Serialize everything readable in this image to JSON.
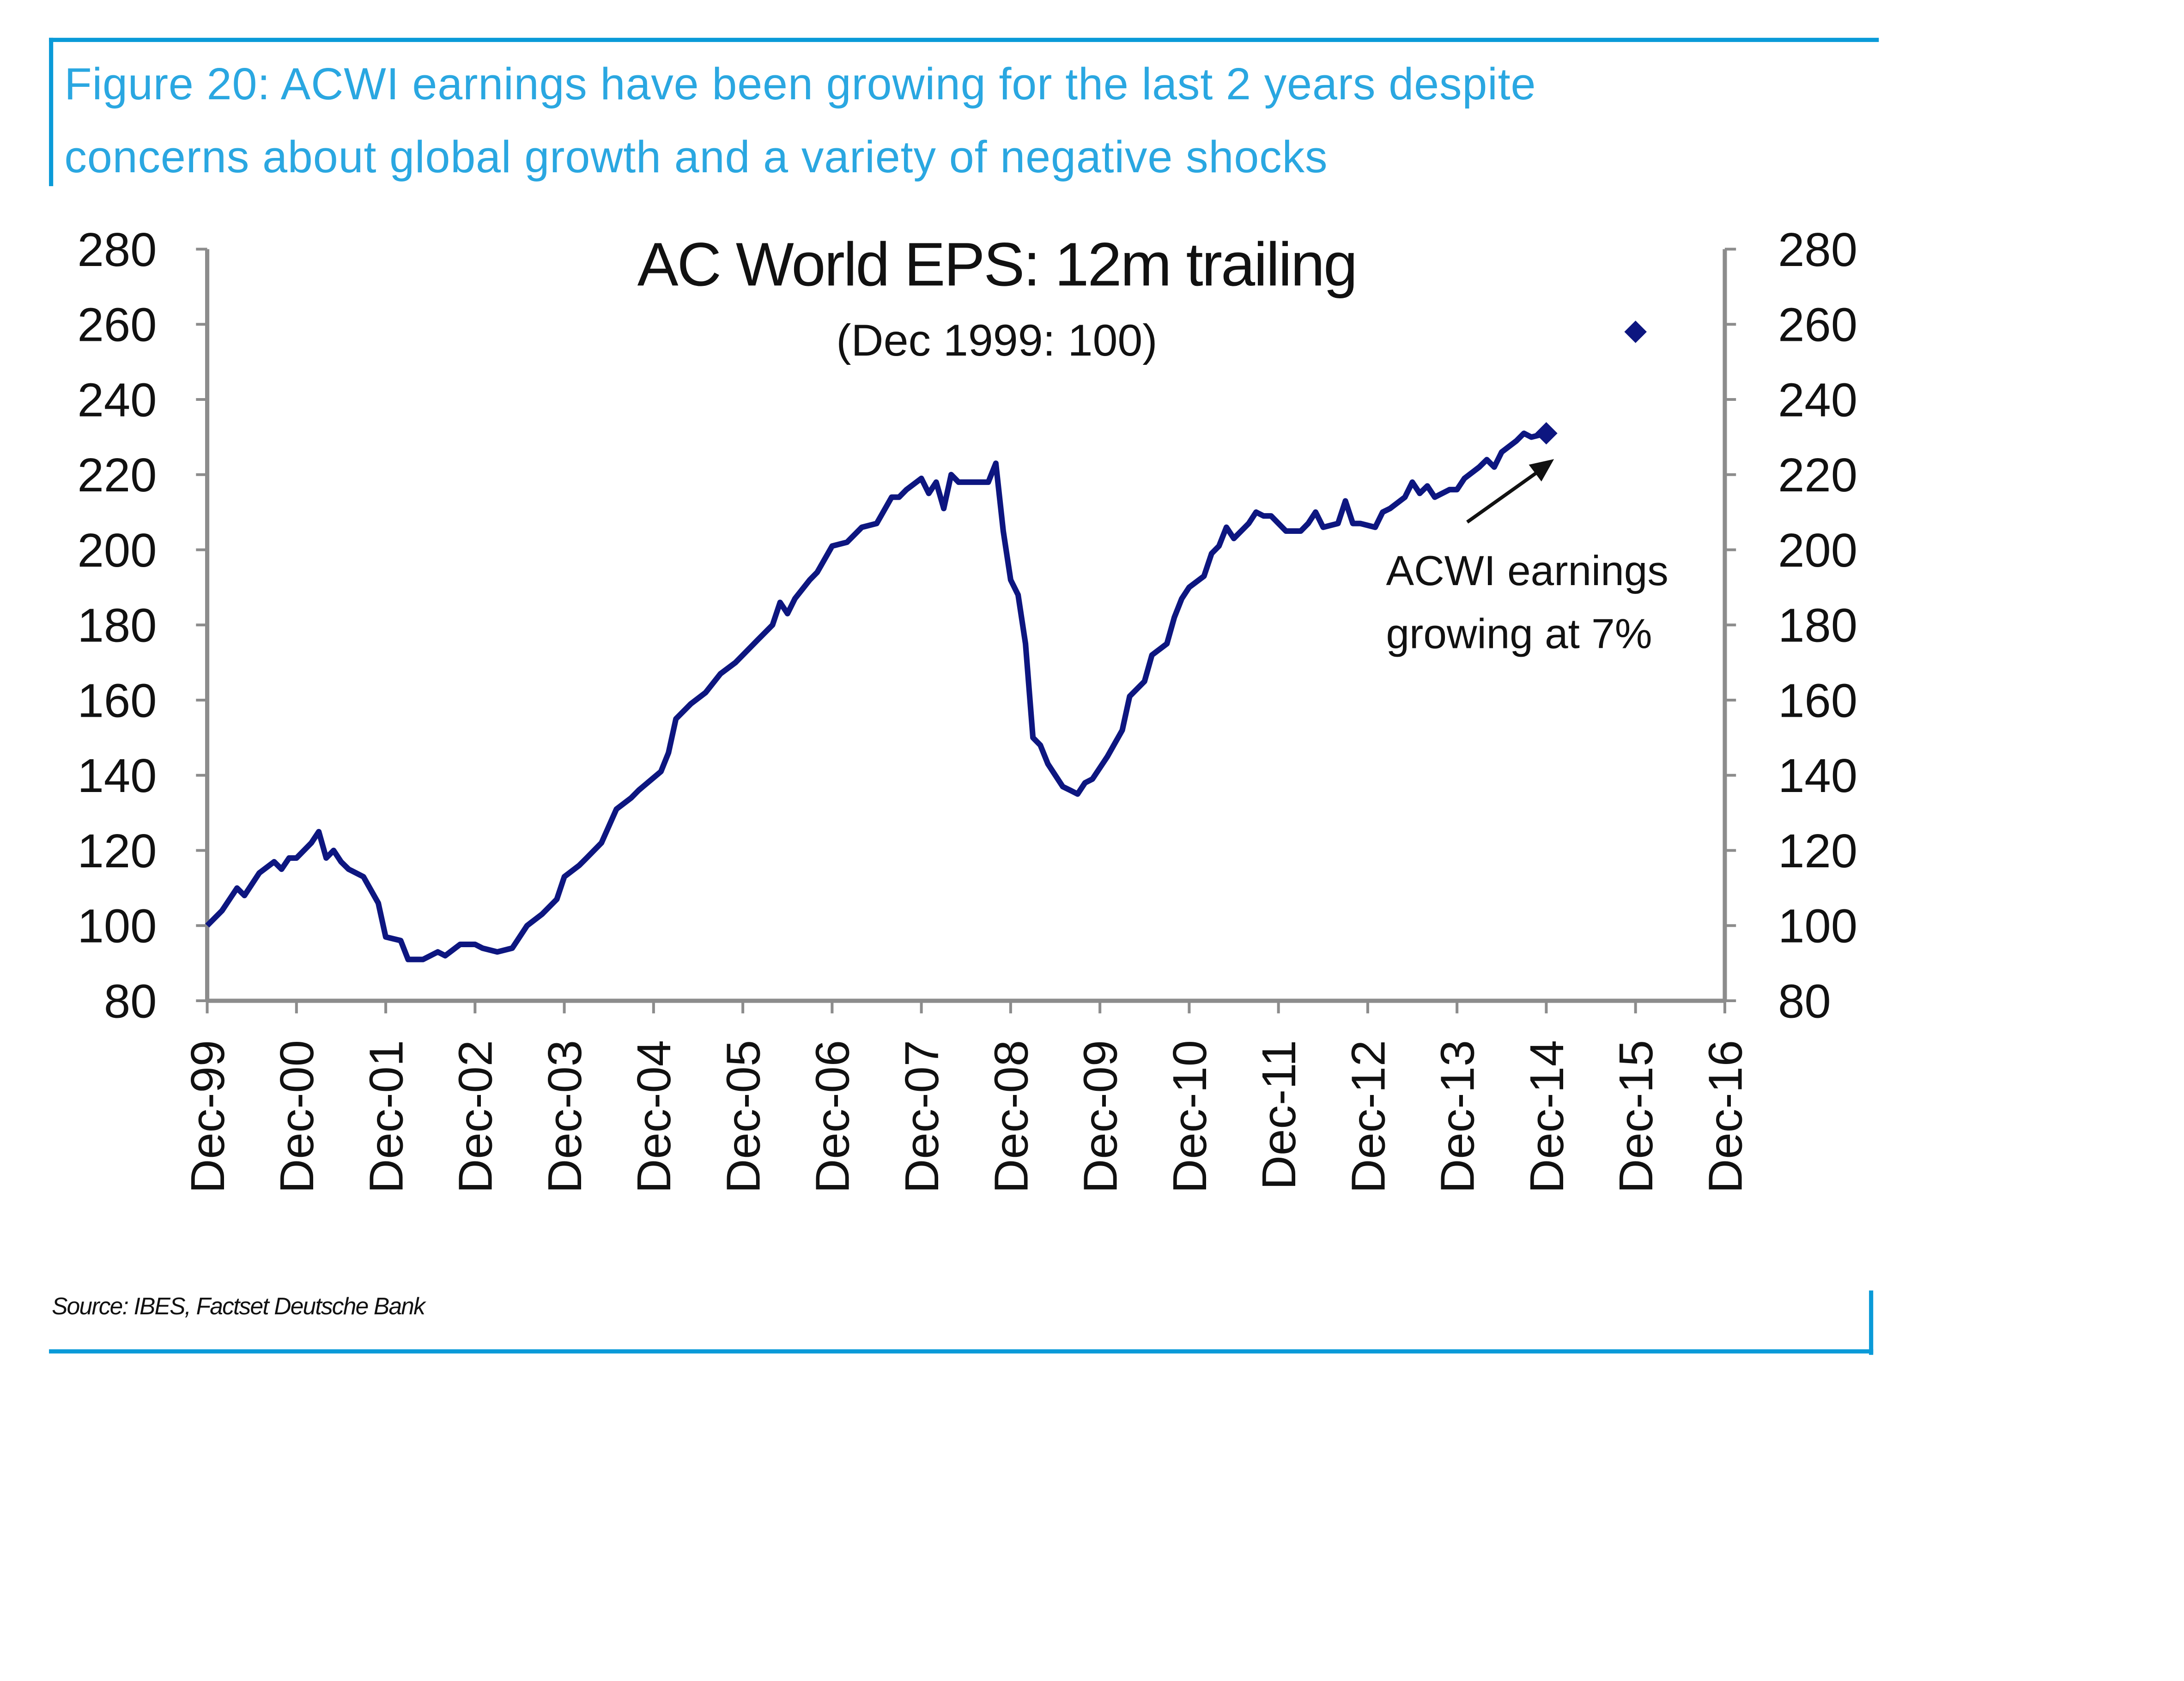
{
  "header": {
    "caption_line1": "Figure 20: ACWI earnings have been growing for the last 2 years despite",
    "caption_line2": "concerns about global growth and a variety of negative shocks"
  },
  "footer": {
    "source": "Source: IBES, Factset Deutsche Bank"
  },
  "colors": {
    "accent": "#0a9ad8",
    "caption": "#2aa7e1",
    "series": "#0d1680",
    "axis": "#8c8c8c"
  },
  "chart_data": {
    "type": "line",
    "title": "AC World EPS: 12m trailing",
    "subtitle": "(Dec 1999: 100)",
    "xlabel": "",
    "ylabel": "",
    "ylim": [
      80,
      280
    ],
    "yticks": [
      "80",
      "100",
      "120",
      "140",
      "160",
      "180",
      "200",
      "220",
      "240",
      "260",
      "280"
    ],
    "xticks": [
      "Dec-99",
      "Dec-00",
      "Dec-01",
      "Dec-02",
      "Dec-03",
      "Dec-04",
      "Dec-05",
      "Dec-06",
      "Dec-07",
      "Dec-08",
      "Dec-09",
      "Dec-10",
      "Dec-11",
      "Dec-12",
      "Dec-13",
      "Dec-14",
      "Dec-15",
      "Dec-16"
    ],
    "xlim": [
      "1999-12",
      "2016-12"
    ],
    "grid": false,
    "dual_y_axis": true,
    "series": [
      {
        "x": [
          "1999-12",
          "2000-02",
          "2000-04",
          "2000-05",
          "2000-07",
          "2000-09",
          "2000-10",
          "2000-11",
          "2000-12",
          "2001-02",
          "2001-03",
          "2001-04",
          "2001-05",
          "2001-06",
          "2001-07",
          "2001-09",
          "2001-11",
          "2001-12",
          "2002-02",
          "2002-03",
          "2002-05",
          "2002-07",
          "2002-08",
          "2002-10",
          "2002-12",
          "2003-01",
          "2003-03",
          "2003-05",
          "2003-07",
          "2003-09",
          "2003-11",
          "2003-12",
          "2004-02",
          "2004-03",
          "2004-05",
          "2004-07",
          "2004-09",
          "2004-10",
          "2005-01",
          "2005-02",
          "2005-03",
          "2005-05",
          "2005-07",
          "2005-09",
          "2005-11",
          "2006-02",
          "2006-04",
          "2006-05",
          "2006-06",
          "2006-07",
          "2006-09",
          "2006-10",
          "2006-12",
          "2007-02",
          "2007-04",
          "2007-06",
          "2007-08",
          "2007-09",
          "2007-10",
          "2007-12",
          "2008-01",
          "2008-02",
          "2008-03",
          "2008-04",
          "2008-05",
          "2008-07",
          "2008-09",
          "2008-10",
          "2008-11",
          "2008-12",
          "2009-01",
          "2009-02",
          "2009-03",
          "2009-04",
          "2009-05",
          "2009-06",
          "2009-07",
          "2009-08",
          "2009-09",
          "2009-10",
          "2009-11",
          "2010-01",
          "2010-03",
          "2010-04",
          "2010-06",
          "2010-07",
          "2010-09",
          "2010-10",
          "2010-11",
          "2010-12",
          "2011-02",
          "2011-03",
          "2011-04",
          "2011-05",
          "2011-06",
          "2011-08",
          "2011-09",
          "2011-10",
          "2011-11",
          "2012-01",
          "2012-03",
          "2012-04",
          "2012-05",
          "2012-06",
          "2012-08",
          "2012-09",
          "2012-10",
          "2012-11",
          "2013-01",
          "2013-02",
          "2013-03",
          "2013-05",
          "2013-06",
          "2013-07",
          "2013-08",
          "2013-09",
          "2013-11",
          "2013-12",
          "2014-01",
          "2014-03",
          "2014-04",
          "2014-05",
          "2014-06",
          "2014-08",
          "2014-09",
          "2014-10",
          "2014-12"
        ],
        "values": [
          100,
          104,
          110,
          108,
          114,
          117,
          115,
          118,
          118,
          122,
          125,
          118,
          120,
          117,
          115,
          113,
          106,
          97,
          96,
          91,
          91,
          93,
          92,
          95,
          95,
          94,
          93,
          94,
          100,
          103,
          107,
          113,
          116,
          118,
          122,
          131,
          134,
          136,
          141,
          146,
          155,
          159,
          162,
          167,
          170,
          176,
          180,
          186,
          183,
          187,
          192,
          194,
          201,
          202,
          206,
          207,
          214,
          214,
          216,
          219,
          215,
          218,
          211,
          220,
          218,
          218,
          218,
          223,
          205,
          192,
          188,
          175,
          150,
          148,
          143,
          140,
          137,
          136,
          135,
          138,
          139,
          145,
          152,
          161,
          165,
          172,
          175,
          182,
          187,
          190,
          193,
          199,
          201,
          206,
          203,
          207,
          210,
          209,
          209,
          205,
          205,
          207,
          210,
          206,
          207,
          213,
          207,
          207,
          206,
          210,
          211,
          214,
          218,
          215,
          217,
          214,
          216,
          216,
          219,
          222,
          224,
          222,
          226,
          229,
          231,
          230,
          231
        ]
      }
    ],
    "markers": [
      {
        "x": "2014-12",
        "value": 231
      },
      {
        "x": "2015-12",
        "value": 258
      }
    ],
    "annotation": {
      "line1": "ACWI earnings",
      "line2": "growing at 7%"
    }
  }
}
